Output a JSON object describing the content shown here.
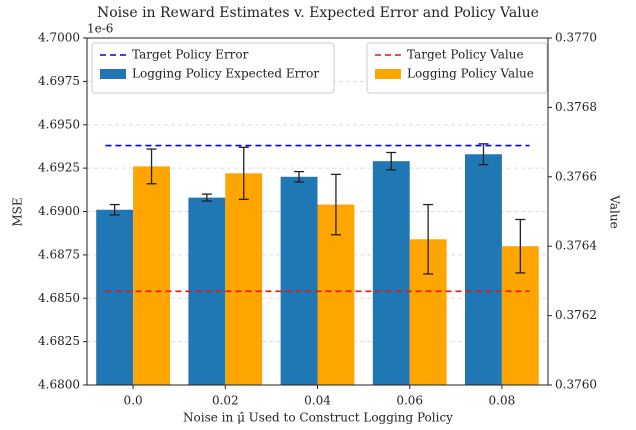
{
  "chart_data": {
    "type": "bar",
    "title": "Noise in Reward Estimates v. Expected Error and Policy Value",
    "xlabel": "Noise in μ̂ Used to Construct Logging Policy",
    "ylabel": "MSE",
    "y2label": "Value",
    "y_offset_label": "1e-6",
    "categories": [
      "0.0",
      "0.02",
      "0.04",
      "0.06",
      "0.08"
    ],
    "series": [
      {
        "name": "Logging Policy Expected Error",
        "color": "#1f77b4",
        "axis": "y",
        "values": [
          4.6901,
          4.6908,
          4.692,
          4.6929,
          4.6933
        ],
        "errors": [
          0.0003,
          0.0002,
          0.0003,
          0.0005,
          0.0006
        ]
      },
      {
        "name": "Logging Policy Value",
        "color": "#ffa500",
        "axis": "y2",
        "values": [
          0.37663,
          0.37661,
          0.37652,
          0.37642,
          0.3764
        ],
        "errors": [
          5e-05,
          7.5e-05,
          8.7e-05,
          0.0001,
          7.7e-05
        ]
      }
    ],
    "lines": [
      {
        "name": "Target Policy Error",
        "color": "#0000ee",
        "axis": "y",
        "value": 4.6938
      },
      {
        "name": "Target Policy Value",
        "color": "#ee1111",
        "axis": "y2",
        "value": 0.37627
      }
    ],
    "ylim": [
      4.68,
      4.7
    ],
    "yticks": [
      {
        "value": 4.68,
        "label": "4.6800"
      },
      4.6825,
      {
        "value": 4.685,
        "label": "4.6850"
      },
      4.6875,
      {
        "value": 4.69,
        "label": "4.6900"
      },
      4.6925,
      {
        "value": 4.695,
        "label": "4.6950"
      },
      4.6975,
      {
        "value": 4.7,
        "label": "4.7000"
      }
    ],
    "y2lim": [
      0.376,
      0.377
    ],
    "y2ticks": [
      {
        "value": 0.376,
        "label": "0.3760"
      },
      0.3762,
      0.3764,
      0.3766,
      0.3768,
      {
        "value": 0.377,
        "label": "0.3770"
      }
    ],
    "grid": true
  }
}
